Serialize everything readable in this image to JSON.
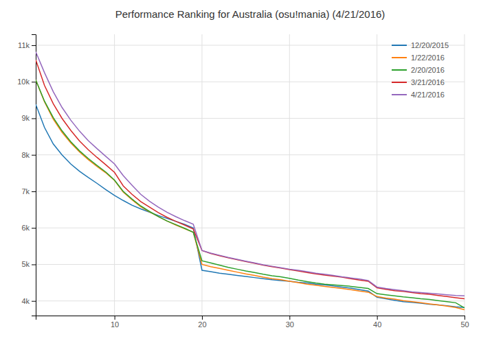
{
  "chart_data": {
    "type": "line",
    "title": "Performance Ranking for Australia (osu!mania) (4/21/2016)",
    "x": [
      1,
      2,
      3,
      4,
      5,
      6,
      7,
      8,
      9,
      10,
      11,
      12,
      13,
      14,
      15,
      16,
      17,
      18,
      19,
      20,
      21,
      22,
      23,
      24,
      25,
      26,
      27,
      28,
      29,
      30,
      31,
      32,
      33,
      34,
      35,
      36,
      37,
      38,
      39,
      40,
      41,
      42,
      43,
      44,
      45,
      46,
      47,
      48,
      49,
      50
    ],
    "series": [
      {
        "name": "12/20/2015",
        "color": "#1f77b4",
        "values": [
          9380,
          8750,
          8300,
          8000,
          7750,
          7550,
          7380,
          7220,
          7050,
          6890,
          6750,
          6620,
          6520,
          6430,
          6340,
          6260,
          6180,
          6100,
          6000,
          4840,
          4800,
          4760,
          4730,
          4700,
          4670,
          4640,
          4610,
          4580,
          4560,
          4540,
          4510,
          4490,
          4460,
          4440,
          4410,
          4380,
          4350,
          4310,
          4270,
          4100,
          4060,
          4020,
          3980,
          3960,
          3940,
          3910,
          3890,
          3870,
          3840,
          3820
        ]
      },
      {
        "name": "1/22/2016",
        "color": "#ff7f0e",
        "values": [
          10050,
          9450,
          8980,
          8620,
          8330,
          8080,
          7870,
          7680,
          7510,
          7300,
          6980,
          6770,
          6580,
          6440,
          6310,
          6190,
          6080,
          5980,
          5880,
          5000,
          4940,
          4890,
          4840,
          4790,
          4740,
          4700,
          4650,
          4610,
          4580,
          4540,
          4500,
          4460,
          4430,
          4400,
          4370,
          4340,
          4310,
          4270,
          4240,
          4120,
          4080,
          4050,
          4010,
          3980,
          3950,
          3920,
          3890,
          3860,
          3820,
          3760
        ]
      },
      {
        "name": "2/20/2016",
        "color": "#2ca02c",
        "values": [
          10050,
          9470,
          9020,
          8660,
          8360,
          8110,
          7900,
          7710,
          7530,
          7310,
          7000,
          6790,
          6600,
          6450,
          6310,
          6190,
          6090,
          5990,
          5880,
          5100,
          5040,
          4980,
          4920,
          4870,
          4820,
          4780,
          4730,
          4690,
          4660,
          4620,
          4570,
          4530,
          4490,
          4460,
          4440,
          4420,
          4400,
          4370,
          4340,
          4200,
          4170,
          4140,
          4110,
          4090,
          4060,
          4040,
          4010,
          3980,
          3950,
          3810
        ]
      },
      {
        "name": "3/21/2016",
        "color": "#d62728",
        "values": [
          10600,
          9900,
          9400,
          9000,
          8670,
          8380,
          8140,
          7930,
          7730,
          7520,
          7150,
          6920,
          6720,
          6570,
          6420,
          6290,
          6180,
          6080,
          5970,
          5380,
          5300,
          5240,
          5180,
          5130,
          5080,
          5030,
          4980,
          4940,
          4900,
          4860,
          4820,
          4780,
          4740,
          4710,
          4680,
          4650,
          4610,
          4570,
          4540,
          4360,
          4320,
          4280,
          4260,
          4230,
          4200,
          4180,
          4150,
          4120,
          4090,
          4060
        ]
      },
      {
        "name": "4/21/2016",
        "color": "#9467bd",
        "values": [
          10820,
          10250,
          9730,
          9300,
          8950,
          8650,
          8390,
          8170,
          7960,
          7750,
          7430,
          7170,
          6920,
          6730,
          6570,
          6430,
          6310,
          6200,
          6100,
          5380,
          5310,
          5250,
          5190,
          5140,
          5090,
          5040,
          4990,
          4950,
          4910,
          4870,
          4840,
          4800,
          4760,
          4730,
          4700,
          4660,
          4630,
          4600,
          4560,
          4380,
          4340,
          4310,
          4280,
          4250,
          4230,
          4210,
          4190,
          4170,
          4150,
          4140
        ]
      }
    ],
    "xlim": [
      1,
      50
    ],
    "ylim": [
      3600,
      11300
    ],
    "xticks": [
      10,
      20,
      30,
      40,
      50
    ],
    "yticks": [
      {
        "value": 4000,
        "label": "4k"
      },
      {
        "value": 5000,
        "label": "5k"
      },
      {
        "value": 6000,
        "label": "6k"
      },
      {
        "value": 7000,
        "label": "7k"
      },
      {
        "value": 8000,
        "label": "8k"
      },
      {
        "value": 9000,
        "label": "9k"
      },
      {
        "value": 10000,
        "label": "10k"
      },
      {
        "value": 11000,
        "label": "11k"
      }
    ],
    "grid": true,
    "legend": "upper right"
  }
}
